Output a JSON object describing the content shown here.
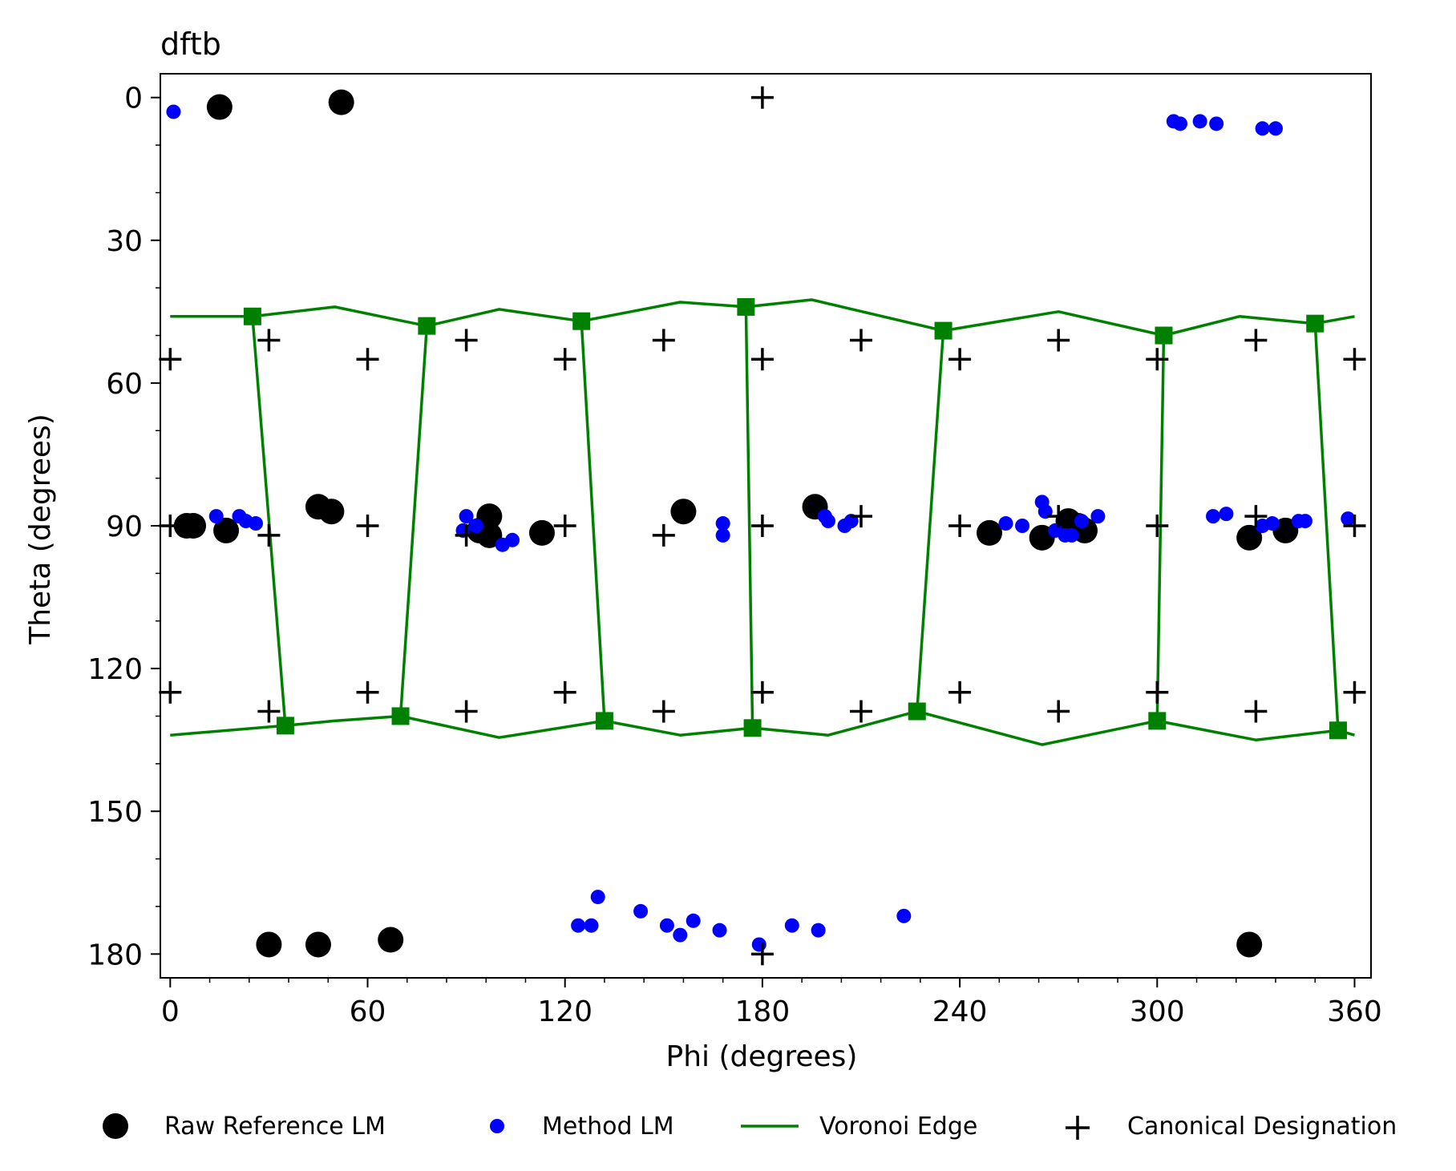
{
  "chart_data": {
    "type": "scatter",
    "title": "dftb",
    "xlabel": "Phi (degrees)",
    "ylabel": "Theta (degrees)",
    "xlim": [
      -3,
      365
    ],
    "ylim": [
      185,
      -5
    ],
    "y_inverted": true,
    "x_ticks": [
      0,
      60,
      120,
      180,
      240,
      300,
      360
    ],
    "y_ticks": [
      0,
      30,
      60,
      90,
      120,
      150,
      180
    ],
    "x_minor_step": 12,
    "y_minor_step": 10,
    "grid": false,
    "legend_position": "bottom",
    "legend": [
      {
        "label": "Raw Reference LM",
        "marker": "large-circle",
        "color": "#000000"
      },
      {
        "label": "Method LM",
        "marker": "small-circle",
        "color": "#0000ff"
      },
      {
        "label": "Voronoi Edge",
        "marker": "line",
        "color": "#008000"
      },
      {
        "label": "Canonical Designation",
        "marker": "plus",
        "color": "#000000"
      }
    ],
    "series": [
      {
        "name": "Raw Reference LM",
        "color": "#000000",
        "points": [
          [
            15,
            2
          ],
          [
            52,
            1
          ],
          [
            5,
            90
          ],
          [
            7,
            90
          ],
          [
            17,
            91
          ],
          [
            45,
            86
          ],
          [
            49,
            87
          ],
          [
            94,
            91
          ],
          [
            97,
            92
          ],
          [
            97,
            88
          ],
          [
            113,
            91.5
          ],
          [
            156,
            87
          ],
          [
            196,
            86
          ],
          [
            249,
            91.5
          ],
          [
            265,
            92.5
          ],
          [
            273,
            89
          ],
          [
            276,
            90
          ],
          [
            278,
            91
          ],
          [
            328,
            92.5
          ],
          [
            339,
            91
          ],
          [
            30,
            178
          ],
          [
            45,
            178
          ],
          [
            67,
            177
          ],
          [
            328,
            178
          ]
        ]
      },
      {
        "name": "Method LM",
        "color": "#0000ff",
        "points": [
          [
            1,
            3
          ],
          [
            305,
            5
          ],
          [
            307,
            5.5
          ],
          [
            313,
            5
          ],
          [
            318,
            5.5
          ],
          [
            332,
            6.5
          ],
          [
            336,
            6.5
          ],
          [
            14,
            88
          ],
          [
            21,
            88
          ],
          [
            23,
            89
          ],
          [
            26,
            89.5
          ],
          [
            89,
            91
          ],
          [
            90,
            88
          ],
          [
            93,
            90
          ],
          [
            101,
            94
          ],
          [
            104,
            93
          ],
          [
            168,
            89.5
          ],
          [
            168,
            92
          ],
          [
            199,
            88
          ],
          [
            200,
            89
          ],
          [
            205,
            90
          ],
          [
            207,
            89
          ],
          [
            254,
            89.5
          ],
          [
            259,
            90
          ],
          [
            265,
            85
          ],
          [
            266,
            87
          ],
          [
            269,
            91
          ],
          [
            272,
            92
          ],
          [
            274,
            92
          ],
          [
            277,
            89
          ],
          [
            282,
            88
          ],
          [
            317,
            88
          ],
          [
            321,
            87.5
          ],
          [
            332,
            90
          ],
          [
            335,
            89.5
          ],
          [
            343,
            89
          ],
          [
            345,
            89
          ],
          [
            358,
            88.5
          ],
          [
            124,
            174
          ],
          [
            128,
            174
          ],
          [
            130,
            168
          ],
          [
            143,
            171
          ],
          [
            151,
            174
          ],
          [
            155,
            176
          ],
          [
            159,
            173
          ],
          [
            167,
            175
          ],
          [
            179,
            178
          ],
          [
            189,
            174
          ],
          [
            197,
            175
          ],
          [
            223,
            172
          ]
        ]
      },
      {
        "name": "Canonical Designation",
        "color": "#000000",
        "points": [
          [
            180,
            0
          ],
          [
            0,
            55
          ],
          [
            30,
            51
          ],
          [
            60,
            55
          ],
          [
            90,
            51
          ],
          [
            120,
            55
          ],
          [
            150,
            51
          ],
          [
            180,
            55
          ],
          [
            210,
            51
          ],
          [
            240,
            55
          ],
          [
            270,
            51
          ],
          [
            300,
            55
          ],
          [
            330,
            51
          ],
          [
            360,
            55
          ],
          [
            0,
            90
          ],
          [
            30,
            92
          ],
          [
            60,
            90
          ],
          [
            90,
            92
          ],
          [
            120,
            90
          ],
          [
            150,
            92
          ],
          [
            180,
            90
          ],
          [
            210,
            88
          ],
          [
            240,
            90
          ],
          [
            270,
            88
          ],
          [
            300,
            90
          ],
          [
            330,
            88
          ],
          [
            360,
            90
          ],
          [
            0,
            125
          ],
          [
            30,
            129
          ],
          [
            60,
            125
          ],
          [
            90,
            129
          ],
          [
            120,
            125
          ],
          [
            150,
            129
          ],
          [
            180,
            125
          ],
          [
            210,
            129
          ],
          [
            240,
            125
          ],
          [
            270,
            129
          ],
          [
            300,
            125
          ],
          [
            330,
            129
          ],
          [
            360,
            125
          ],
          [
            180,
            180
          ]
        ]
      },
      {
        "name": "Voronoi Edge",
        "color": "#008000",
        "vertices_top": [
          [
            25,
            46
          ],
          [
            78,
            48
          ],
          [
            125,
            47
          ],
          [
            175,
            44
          ],
          [
            235,
            49
          ],
          [
            302,
            50
          ],
          [
            348,
            47.5
          ]
        ],
        "vertices_bottom": [
          [
            35,
            132
          ],
          [
            70,
            130
          ],
          [
            132,
            131
          ],
          [
            177,
            132.5
          ],
          [
            227,
            129
          ],
          [
            300,
            131
          ],
          [
            355,
            133
          ]
        ],
        "top_curve": [
          [
            0,
            46
          ],
          [
            25,
            46
          ],
          [
            50,
            44
          ],
          [
            78,
            48
          ],
          [
            100,
            44.5
          ],
          [
            125,
            47
          ],
          [
            155,
            43
          ],
          [
            175,
            44
          ],
          [
            195,
            42.5
          ],
          [
            235,
            49
          ],
          [
            270,
            45
          ],
          [
            302,
            50
          ],
          [
            325,
            46
          ],
          [
            348,
            47.5
          ],
          [
            360,
            46
          ]
        ],
        "bottom_curve": [
          [
            0,
            134
          ],
          [
            35,
            132
          ],
          [
            50,
            131
          ],
          [
            70,
            130
          ],
          [
            100,
            134.5
          ],
          [
            132,
            131
          ],
          [
            155,
            134
          ],
          [
            177,
            132.5
          ],
          [
            200,
            134
          ],
          [
            227,
            129
          ],
          [
            265,
            136
          ],
          [
            300,
            131
          ],
          [
            330,
            135
          ],
          [
            355,
            133
          ],
          [
            360,
            134
          ]
        ]
      }
    ]
  }
}
